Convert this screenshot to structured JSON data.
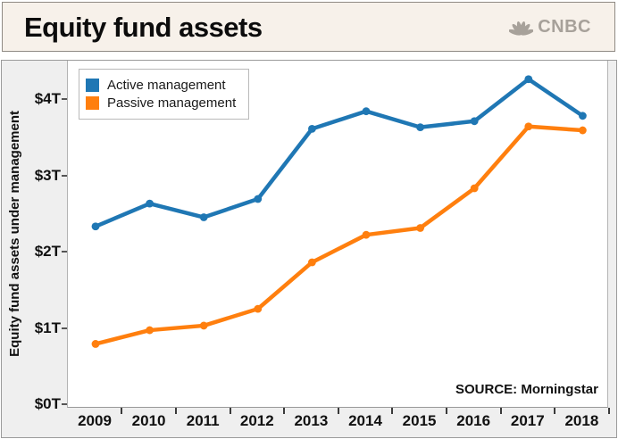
{
  "header": {
    "title": "Equity fund assets",
    "logo_text": "CNBC"
  },
  "legend": {
    "items": [
      {
        "label": "Active management",
        "color": "#1f77b4"
      },
      {
        "label": "Passive management",
        "color": "#ff7f0e"
      }
    ]
  },
  "source": {
    "text": "SOURCE: Morningstar"
  },
  "colors": {
    "active": "#1f77b4",
    "passive": "#ff7f0e",
    "header_bg": "#f7f1ea",
    "figure_bg": "#efefef",
    "logo_gray": "#a7a19a"
  },
  "chart_data": {
    "type": "line",
    "title": "Equity fund assets",
    "xlabel": "",
    "ylabel": "Equity fund assets under management",
    "x": [
      2009,
      2010,
      2011,
      2012,
      2013,
      2014,
      2015,
      2016,
      2017,
      2018
    ],
    "series": [
      {
        "name": "Active management",
        "color": "#1f77b4",
        "values": [
          2.33,
          2.63,
          2.45,
          2.69,
          3.61,
          3.84,
          3.63,
          3.71,
          4.26,
          3.78
        ]
      },
      {
        "name": "Passive management",
        "color": "#ff7f0e",
        "values": [
          0.79,
          0.97,
          1.03,
          1.25,
          1.86,
          2.22,
          2.31,
          2.83,
          3.64,
          3.59
        ]
      }
    ],
    "unit": "trillion USD",
    "yticks": [
      "$0T",
      "$1T",
      "$2T",
      "$3T",
      "$4T"
    ],
    "ytick_values": [
      0,
      1,
      2,
      3,
      4
    ],
    "ylim": [
      0,
      4.5
    ],
    "grid": false,
    "markers": true,
    "legend_position": "upper left",
    "annotation": "SOURCE: Morningstar"
  }
}
